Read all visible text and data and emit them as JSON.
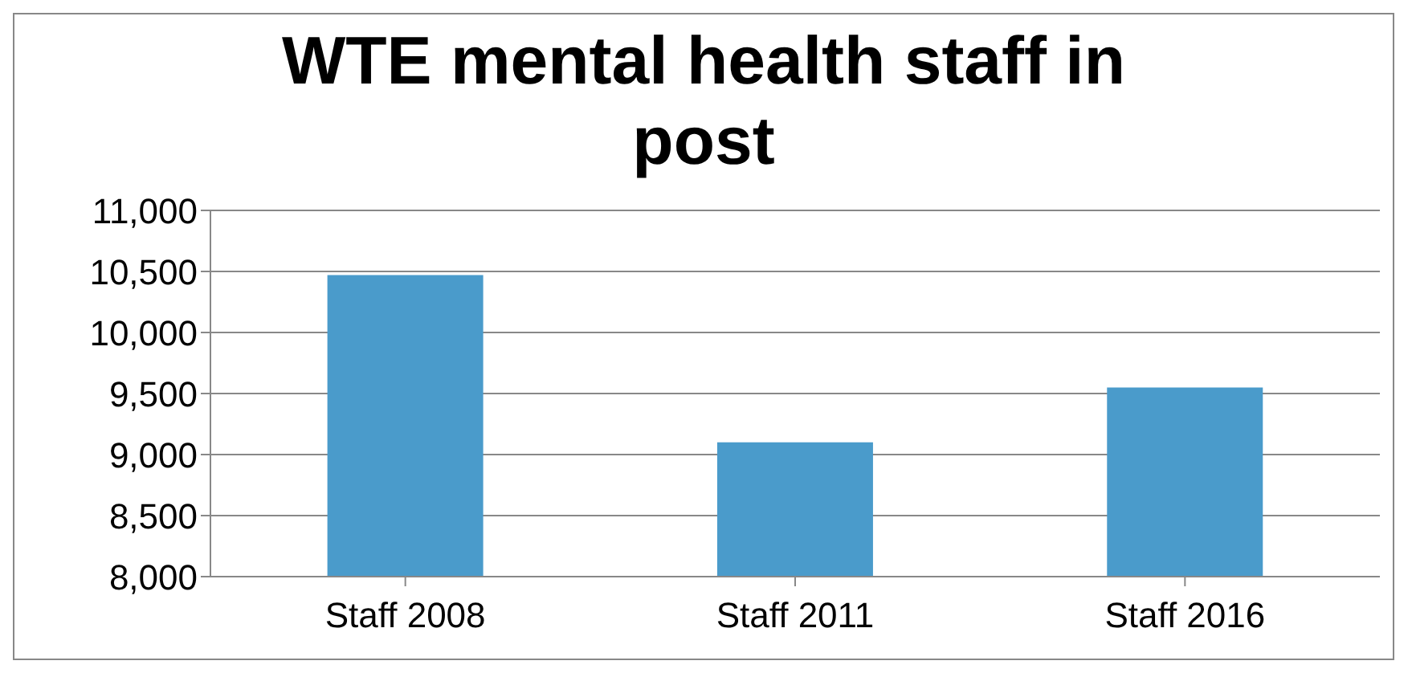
{
  "chart_data": {
    "type": "bar",
    "title": "WTE mental health staff in post",
    "categories": [
      "Staff 2008",
      "Staff 2011",
      "Staff 2016"
    ],
    "values": [
      10470,
      9100,
      9550
    ],
    "color": "#4a9bcb",
    "ylim": [
      8000,
      11000
    ],
    "yticks": [
      {
        "value": 8000,
        "label": "8,000"
      },
      {
        "value": 8500,
        "label": "8,500"
      },
      {
        "value": 9000,
        "label": "9,000"
      },
      {
        "value": 9500,
        "label": "9,500"
      },
      {
        "value": 10000,
        "label": "10,000"
      },
      {
        "value": 10500,
        "label": "10,500"
      },
      {
        "value": 11000,
        "label": "11,000"
      }
    ],
    "grid": "y",
    "legend": false
  }
}
